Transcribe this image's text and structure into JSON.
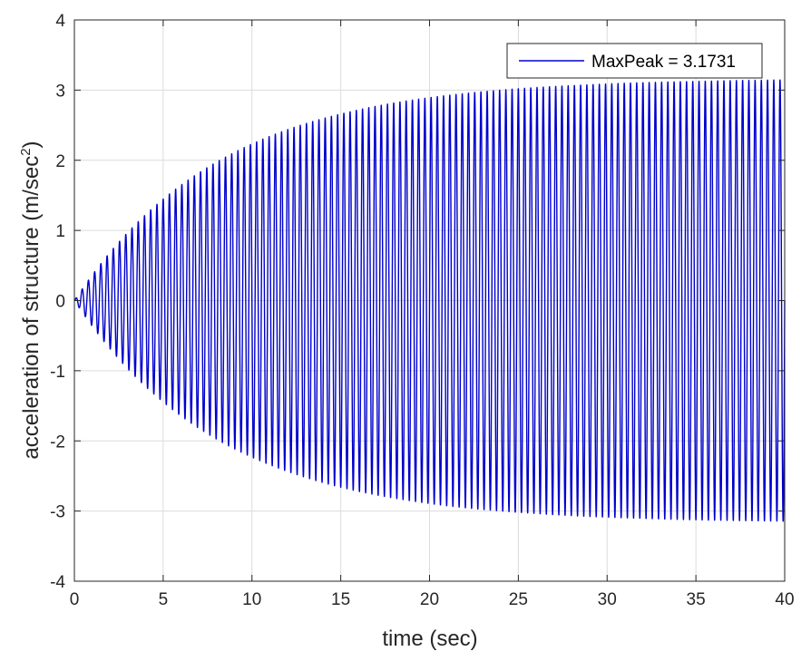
{
  "chart_data": {
    "type": "line",
    "xlabel": "time (sec)",
    "ylabel_main": "acceleration of structure (m/sec",
    "ylabel_sup": "2",
    "ylabel_tail": ")",
    "xlim": [
      0,
      40
    ],
    "ylim": [
      -4,
      4
    ],
    "xticks": [
      0,
      5,
      10,
      15,
      20,
      25,
      30,
      35,
      40
    ],
    "yticks": [
      -4,
      -3,
      -2,
      -1,
      0,
      1,
      2,
      3,
      4
    ],
    "grid": true,
    "legend_position": "top-right",
    "series": [
      {
        "name": "MaxPeak = 3.1731",
        "color": "#0000cd",
        "signal": {
          "form": "sine with exponentially saturating envelope",
          "frequency_hz": 2.85,
          "envelope_final": 3.17,
          "envelope_time_constant_s": 8.2,
          "t_start": 0,
          "t_end": 40
        },
        "envelope_samples": {
          "t": [
            0,
            2.5,
            5,
            10,
            15,
            20,
            25,
            30,
            35,
            40
          ],
          "amplitude": [
            0.05,
            0.85,
            1.65,
            2.5,
            2.9,
            3.07,
            3.12,
            3.15,
            3.17,
            3.17
          ]
        }
      }
    ]
  }
}
